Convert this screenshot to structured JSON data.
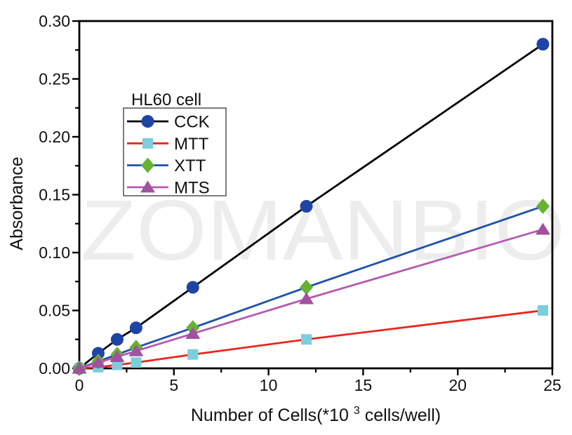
{
  "watermark": "ZOMANBIO",
  "colors": {
    "background": "#ffffff",
    "axis": "#000000",
    "text": "#111111",
    "watermark": "#ededed",
    "legend_border": "#444444"
  },
  "chart_data": {
    "type": "line",
    "legend_title": "HL60 cell",
    "ylabel": "Absorbance",
    "xlabel_parts": {
      "prefix": "Number of Cells(*10",
      "sup": "3",
      "suffix": " cells/well)"
    },
    "x": [
      0,
      1,
      2,
      3,
      6,
      12,
      24.5
    ],
    "xlim": [
      0,
      25
    ],
    "ylim": [
      0,
      0.3
    ],
    "grid": false,
    "legend_position": "upper-left-inside",
    "x_ticks": [
      {
        "v": 0,
        "label": "0"
      },
      {
        "v": 5,
        "label": "5"
      },
      {
        "v": 10,
        "label": "10"
      },
      {
        "v": 15,
        "label": "15"
      },
      {
        "v": 20,
        "label": "20"
      },
      {
        "v": 25,
        "label": "25"
      }
    ],
    "x_minor_ticks": [
      2.5,
      7.5,
      12.5,
      17.5,
      22.5
    ],
    "y_ticks": [
      {
        "v": 0.0,
        "label": "0.00"
      },
      {
        "v": 0.05,
        "label": "0.05"
      },
      {
        "v": 0.1,
        "label": "0.10"
      },
      {
        "v": 0.15,
        "label": "0.15"
      },
      {
        "v": 0.2,
        "label": "0.20"
      },
      {
        "v": 0.25,
        "label": "0.25"
      },
      {
        "v": 0.3,
        "label": "0.30"
      }
    ],
    "y_minor_ticks": [
      0.025,
      0.075,
      0.125,
      0.175,
      0.225,
      0.275
    ],
    "series": [
      {
        "name": "CCK",
        "marker": "circle",
        "marker_color": "#1e45a6",
        "line_color": "#000000",
        "values": [
          0,
          0.013,
          0.025,
          0.035,
          0.07,
          0.14,
          0.28
        ]
      },
      {
        "name": "MTT",
        "marker": "square",
        "marker_color": "#7bcede",
        "line_color": "#ea251c",
        "values": [
          0,
          0.001,
          0.003,
          0.005,
          0.012,
          0.025,
          0.05
        ]
      },
      {
        "name": "XTT",
        "marker": "diamond",
        "marker_color": "#66b232",
        "line_color": "#2052aa",
        "values": [
          0,
          0.006,
          0.012,
          0.018,
          0.035,
          0.07,
          0.14
        ]
      },
      {
        "name": "MTS",
        "marker": "triangle",
        "marker_color": "#a0519f",
        "line_color": "#b45ab2",
        "values": [
          0,
          0.005,
          0.01,
          0.015,
          0.03,
          0.06,
          0.12
        ]
      }
    ]
  }
}
